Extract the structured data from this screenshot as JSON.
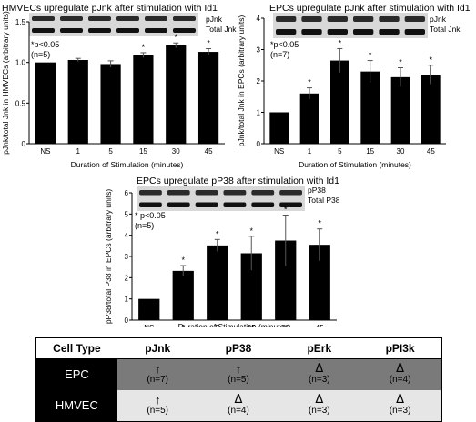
{
  "chart_data": [
    {
      "type": "bar",
      "title": "HMVECs upregulate pJnk after stimulation with Id1",
      "ylabel": "pJnk/total Jnk in HMVECs (arbitrary units)",
      "xlabel": "Duration of Stimulation (minutes)",
      "categories": [
        "NS",
        "1",
        "5",
        "15",
        "30",
        "45"
      ],
      "values": [
        1.0,
        1.03,
        0.98,
        1.09,
        1.21,
        1.13
      ],
      "errors": [
        0.0,
        0.02,
        0.04,
        0.03,
        0.03,
        0.04
      ],
      "significant": [
        false,
        false,
        false,
        true,
        true,
        true
      ],
      "ylim": [
        0,
        1.5
      ],
      "yticks": [
        "0",
        "0.5",
        "1.0",
        "1.5"
      ],
      "blot_labels": [
        "pJnk",
        "Total Jnk"
      ],
      "annotation": "*p<0.05\n(n=5)"
    },
    {
      "type": "bar",
      "title": "EPCs upregulate pJnk after stimulation with Id1",
      "ylabel": "pJnk/total Jnk in EPCs (arbitrary units)",
      "xlabel": "Duration of Stimulation (minutes)",
      "categories": [
        "NS",
        "1",
        "5",
        "15",
        "30",
        "45"
      ],
      "values": [
        1.0,
        1.6,
        2.65,
        2.3,
        2.12,
        2.2
      ],
      "errors": [
        0.0,
        0.18,
        0.38,
        0.35,
        0.3,
        0.3
      ],
      "significant": [
        false,
        true,
        true,
        true,
        true,
        true
      ],
      "ylim": [
        0,
        4
      ],
      "yticks": [
        "0",
        "1",
        "2",
        "3",
        "4"
      ],
      "blot_labels": [
        "pJnk",
        "Total Jnk"
      ],
      "annotation": "*p<0.05\n(n=7)"
    },
    {
      "type": "bar",
      "title": "EPCs upregulate pP38 after stimulation with Id1",
      "ylabel": "pP38/total P38 in EPCs (arbitrary units)",
      "xlabel": "Duration of Stimulation (minutes)",
      "categories": [
        "NS",
        "1",
        "5",
        "15",
        "30",
        "45"
      ],
      "values": [
        1.0,
        2.32,
        3.52,
        3.15,
        3.75,
        3.55
      ],
      "errors": [
        0.0,
        0.25,
        0.28,
        0.8,
        1.2,
        0.75
      ],
      "significant": [
        false,
        true,
        true,
        true,
        true,
        true
      ],
      "ylim": [
        0,
        6
      ],
      "yticks": [
        "0",
        "1",
        "2",
        "3",
        "4",
        "5",
        "6"
      ],
      "blot_labels": [
        "pP38",
        "Total P38"
      ],
      "annotation": "* p<0.05\n(n=5)"
    }
  ],
  "summary_table": {
    "headers": [
      "Cell Type",
      "pJnk",
      "pP38",
      "pErk",
      "pPI3k"
    ],
    "rows": [
      {
        "label": "EPC",
        "cells": [
          {
            "symbol": "↑",
            "kind": "arrow",
            "n": "(n=7)"
          },
          {
            "symbol": "↑",
            "kind": "arrow",
            "n": "(n=5)"
          },
          {
            "symbol": "Δ",
            "kind": "delta",
            "n": "(n=3)"
          },
          {
            "symbol": "Δ",
            "kind": "delta",
            "n": "(n=4)"
          }
        ]
      },
      {
        "label": "HMVEC",
        "cells": [
          {
            "symbol": "↑",
            "kind": "arrow",
            "n": "(n=5)"
          },
          {
            "symbol": "Δ",
            "kind": "delta",
            "n": "(n=4)"
          },
          {
            "symbol": "Δ",
            "kind": "delta",
            "n": "(n=3)"
          },
          {
            "symbol": "Δ",
            "kind": "delta",
            "n": "(n=3)"
          }
        ]
      }
    ]
  }
}
